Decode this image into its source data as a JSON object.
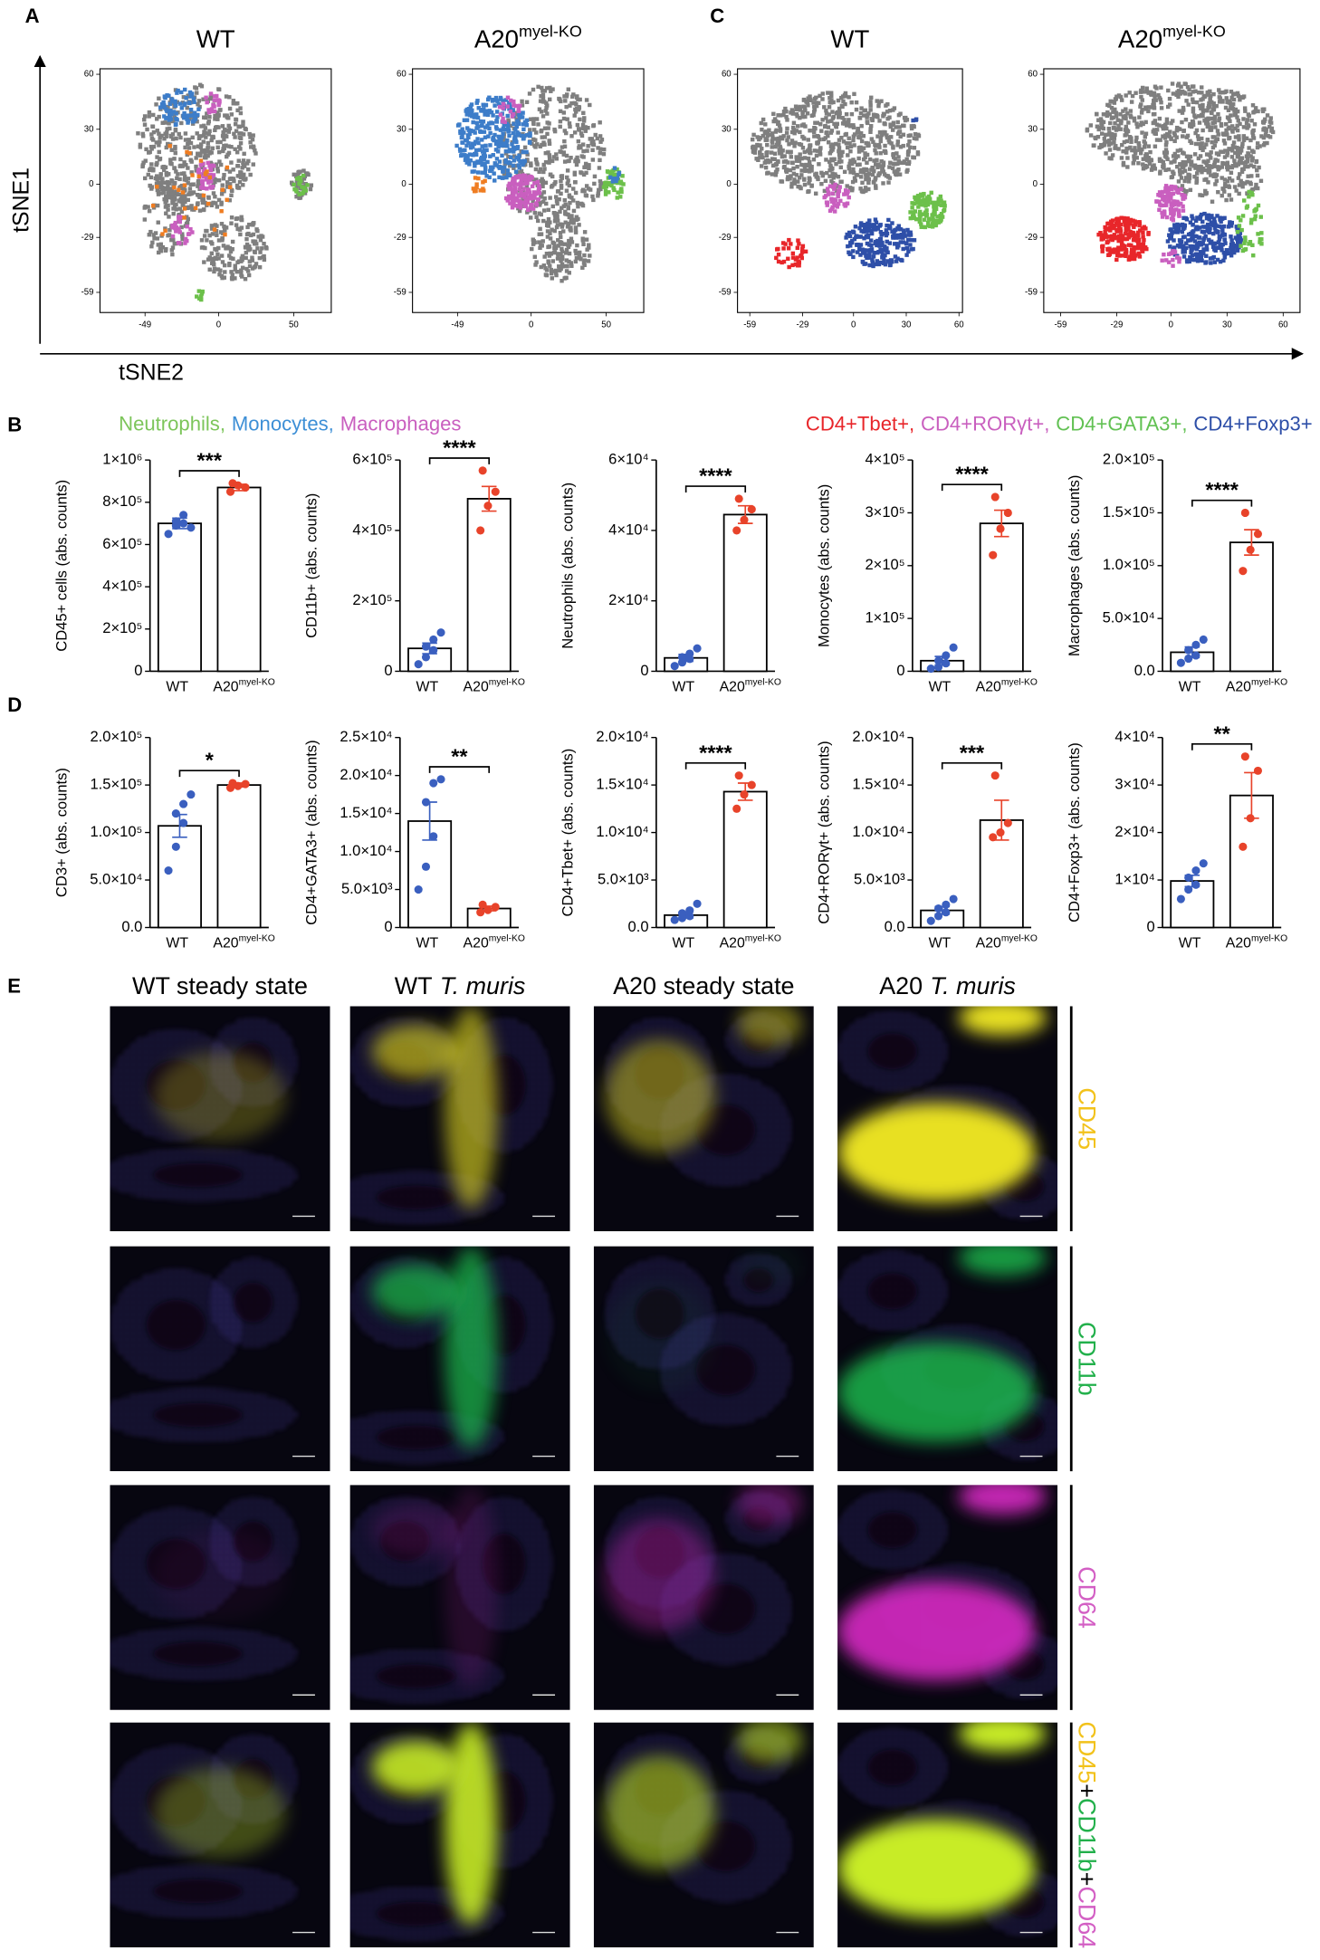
{
  "panel_labels": [
    "A",
    "B",
    "C",
    "D",
    "E"
  ],
  "axis_labels": {
    "y": "tSNE1",
    "x": "tSNE2"
  },
  "tsne": [
    {
      "title": [
        "WT"
      ],
      "xlim": [
        -79,
        75
      ],
      "ylim": [
        -70,
        63
      ],
      "xticks": [
        -49,
        0,
        50
      ],
      "yticks": [
        60,
        30,
        0,
        -29,
        -59
      ]
    },
    {
      "title": [
        "A20",
        "myel-KO"
      ],
      "xlim": [
        -79,
        75
      ],
      "ylim": [
        -70,
        63
      ],
      "xticks": [
        -49,
        0,
        50
      ],
      "yticks": [
        60,
        30,
        0,
        -29,
        -59
      ]
    },
    {
      "title": [
        "WT"
      ],
      "xlim": [
        -66,
        62
      ],
      "ylim": [
        -70,
        63
      ],
      "xticks": [
        -59,
        -29,
        0,
        30,
        60
      ],
      "yticks": [
        60,
        30,
        0,
        -29,
        -59
      ]
    },
    {
      "title": [
        "A20",
        "myel-KO"
      ],
      "xlim": [
        -68,
        69
      ],
      "ylim": [
        -70,
        63
      ],
      "xticks": [
        -59,
        -29,
        0,
        30,
        60
      ],
      "yticks": [
        60,
        30,
        0,
        -29,
        -59
      ]
    }
  ],
  "legends": [
    [
      {
        "text": "Neutrophils,",
        "color": "#7cc55a"
      },
      {
        "text": "Monocytes,",
        "color": "#3d8fd6"
      },
      {
        "text": "Macrophages",
        "color": "#c95fbf"
      }
    ],
    [
      {
        "text": "CD4+Tbet+,",
        "color": "#e8262a"
      },
      {
        "text": "CD4+RORγt+,",
        "color": "#c95fbf"
      },
      {
        "text": "CD4+GATA3+,",
        "color": "#62c153"
      },
      {
        "text": "CD4+Foxp3+",
        "color": "#2e4fa8"
      }
    ]
  ],
  "chart_data": [
    {
      "type": "bar",
      "y_label": "CD45+ cells (abs. counts)",
      "categories": [
        [
          "WT"
        ],
        [
          "A20",
          "myel-KO"
        ]
      ],
      "values": [
        700000,
        870000
      ],
      "errors": [
        25000,
        15000
      ],
      "points": [
        [
          650000,
          690000,
          700000,
          710000,
          740000,
          680000
        ],
        [
          850000,
          880000,
          870000,
          890000
        ]
      ],
      "ylim": [
        0,
        1000000
      ],
      "yticks": [
        0,
        {
          "value": 200000,
          "label": "2×10⁵"
        },
        {
          "value": 400000,
          "label": "4×10⁵"
        },
        {
          "value": 600000,
          "label": "6×10⁵"
        },
        {
          "value": 800000,
          "label": "8×10⁵"
        },
        {
          "value": 1000000,
          "label": "1×10⁶"
        }
      ],
      "significance": "***",
      "point_colors": [
        "#3a5fbf",
        "#e8432a"
      ]
    },
    {
      "type": "bar",
      "y_label": "CD11b+ (abs. counts)",
      "categories": [
        [
          "WT"
        ],
        [
          "A20",
          "myel-KO"
        ]
      ],
      "values": [
        65000,
        490000
      ],
      "errors": [
        15000,
        35000
      ],
      "points": [
        [
          20000,
          40000,
          60000,
          70000,
          90000,
          110000
        ],
        [
          400000,
          470000,
          510000,
          570000
        ]
      ],
      "ylim": [
        0,
        600000
      ],
      "yticks": [
        0,
        {
          "value": 200000,
          "label": "2×10⁵"
        },
        {
          "value": 400000,
          "label": "4×10⁵"
        },
        {
          "value": 600000,
          "label": "6×10⁵"
        }
      ],
      "significance": "****",
      "point_colors": [
        "#3a5fbf",
        "#e8432a"
      ]
    },
    {
      "type": "bar",
      "y_label": "Neutrophils (abs. counts)",
      "categories": [
        [
          "WT"
        ],
        [
          "A20",
          "myel-KO"
        ]
      ],
      "values": [
        3800,
        44500
      ],
      "errors": [
        1000,
        2500
      ],
      "points": [
        [
          1500,
          2500,
          3500,
          4000,
          5000,
          6500
        ],
        [
          40000,
          43000,
          46000,
          49000
        ]
      ],
      "ylim": [
        0,
        60000
      ],
      "yticks": [
        0,
        {
          "value": 20000,
          "label": "2×10⁴"
        },
        {
          "value": 40000,
          "label": "4×10⁴"
        },
        {
          "value": 60000,
          "label": "6×10⁴"
        }
      ],
      "significance": "****",
      "point_colors": [
        "#3a5fbf",
        "#e8432a"
      ]
    },
    {
      "type": "bar",
      "y_label": "Monocytes (abs. counts)",
      "categories": [
        [
          "WT"
        ],
        [
          "A20",
          "myel-KO"
        ]
      ],
      "values": [
        20000,
        280000
      ],
      "errors": [
        8000,
        25000
      ],
      "points": [
        [
          5000,
          8000,
          15000,
          20000,
          30000,
          45000
        ],
        [
          220000,
          270000,
          300000,
          330000
        ]
      ],
      "ylim": [
        0,
        400000
      ],
      "yticks": [
        0,
        {
          "value": 100000,
          "label": "1×10⁵"
        },
        {
          "value": 200000,
          "label": "2×10⁵"
        },
        {
          "value": 300000,
          "label": "3×10⁵"
        },
        {
          "value": 400000,
          "label": "4×10⁵"
        }
      ],
      "significance": "****",
      "point_colors": [
        "#3a5fbf",
        "#e8432a"
      ]
    },
    {
      "type": "bar",
      "y_label": "Macrophages (abs. counts)",
      "categories": [
        [
          "WT"
        ],
        [
          "A20",
          "myel-KO"
        ]
      ],
      "values": [
        18000,
        122000
      ],
      "errors": [
        5000,
        12000
      ],
      "points": [
        [
          8000,
          12000,
          15000,
          20000,
          25000,
          30000
        ],
        [
          95000,
          115000,
          130000,
          150000
        ]
      ],
      "ylim": [
        0,
        200000
      ],
      "yticks": [
        {
          "value": 0,
          "label": "0.0"
        },
        {
          "value": 50000,
          "label": "5.0×10⁴"
        },
        {
          "value": 100000,
          "label": "1.0×10⁵"
        },
        {
          "value": 150000,
          "label": "1.5×10⁵"
        },
        {
          "value": 200000,
          "label": "2.0×10⁵"
        }
      ],
      "significance": "****",
      "point_colors": [
        "#3a5fbf",
        "#e8432a"
      ]
    },
    {
      "type": "bar",
      "y_label": "CD3+ (abs. counts)",
      "categories": [
        [
          "WT"
        ],
        [
          "A20",
          "myel-KO"
        ]
      ],
      "values": [
        107000,
        150000
      ],
      "errors": [
        12000,
        2000
      ],
      "points": [
        [
          60000,
          85000,
          110000,
          120000,
          130000,
          140000
        ],
        [
          147000,
          149000,
          151000,
          152000
        ]
      ],
      "ylim": [
        0,
        200000
      ],
      "yticks": [
        {
          "value": 0,
          "label": "0.0"
        },
        {
          "value": 50000,
          "label": "5.0×10⁴"
        },
        {
          "value": 100000,
          "label": "1.0×10⁵"
        },
        {
          "value": 150000,
          "label": "1.5×10⁵"
        },
        {
          "value": 200000,
          "label": "2.0×10⁵"
        }
      ],
      "significance": "*",
      "point_colors": [
        "#3a5fbf",
        "#e8432a"
      ]
    },
    {
      "type": "bar",
      "y_label": "CD4+GATA3+ (abs. counts)",
      "categories": [
        [
          "WT"
        ],
        [
          "A20",
          "myel-KO"
        ]
      ],
      "values": [
        14000,
        2500
      ],
      "errors": [
        2500,
        300
      ],
      "points": [
        [
          5000,
          8000,
          12000,
          16500,
          19000,
          19500
        ],
        [
          2000,
          2300,
          2700,
          3000
        ]
      ],
      "ylim": [
        0,
        25000
      ],
      "yticks": [
        0,
        {
          "value": 5000,
          "label": "5.0×10³"
        },
        {
          "value": 10000,
          "label": "1.0×10⁴"
        },
        {
          "value": 15000,
          "label": "1.5×10⁴"
        },
        {
          "value": 20000,
          "label": "2.0×10⁴"
        },
        {
          "value": 25000,
          "label": "2.5×10⁴"
        }
      ],
      "significance": "**",
      "point_colors": [
        "#3a5fbf",
        "#e8432a"
      ]
    },
    {
      "type": "bar",
      "y_label": "CD4+Tbet+ (abs. counts)",
      "categories": [
        [
          "WT"
        ],
        [
          "A20",
          "myel-KO"
        ]
      ],
      "values": [
        1300,
        14300
      ],
      "errors": [
        300,
        900
      ],
      "points": [
        [
          800,
          1000,
          1200,
          1500,
          1800,
          2500
        ],
        [
          12500,
          14000,
          15000,
          16000
        ]
      ],
      "ylim": [
        0,
        20000
      ],
      "yticks": [
        {
          "value": 0,
          "label": "0.0"
        },
        {
          "value": 5000,
          "label": "5.0×10³"
        },
        {
          "value": 10000,
          "label": "1.0×10⁴"
        },
        {
          "value": 15000,
          "label": "1.5×10⁴"
        },
        {
          "value": 20000,
          "label": "2.0×10⁴"
        }
      ],
      "significance": "****",
      "point_colors": [
        "#3a5fbf",
        "#e8432a"
      ]
    },
    {
      "type": "bar",
      "y_label": "CD4+RORγt+ (abs. counts)",
      "categories": [
        [
          "WT"
        ],
        [
          "A20",
          "myel-KO"
        ]
      ],
      "values": [
        1800,
        11300
      ],
      "errors": [
        400,
        2100
      ],
      "points": [
        [
          700,
          1200,
          1600,
          2000,
          2400,
          3000
        ],
        [
          9500,
          10000,
          11000,
          16000
        ]
      ],
      "ylim": [
        0,
        20000
      ],
      "yticks": [
        {
          "value": 0,
          "label": "0.0"
        },
        {
          "value": 5000,
          "label": "5.0×10³"
        },
        {
          "value": 10000,
          "label": "1.0×10⁴"
        },
        {
          "value": 15000,
          "label": "1.5×10⁴"
        },
        {
          "value": 20000,
          "label": "2.0×10⁴"
        }
      ],
      "significance": "***",
      "point_colors": [
        "#3a5fbf",
        "#e8432a"
      ]
    },
    {
      "type": "bar",
      "y_label": "CD4+Foxp3+ (abs. counts)",
      "categories": [
        [
          "WT"
        ],
        [
          "A20",
          "myel-KO"
        ]
      ],
      "values": [
        9800,
        27800
      ],
      "errors": [
        1200,
        4800
      ],
      "points": [
        [
          6000,
          8000,
          9000,
          10500,
          12000,
          13500
        ],
        [
          17000,
          23000,
          33000,
          36000
        ]
      ],
      "ylim": [
        0,
        40000
      ],
      "yticks": [
        0,
        {
          "value": 10000,
          "label": "1×10⁴"
        },
        {
          "value": 20000,
          "label": "2×10⁴"
        },
        {
          "value": 30000,
          "label": "3×10⁴"
        },
        {
          "value": 40000,
          "label": "4×10⁴"
        }
      ],
      "significance": "**",
      "point_colors": [
        "#3a5fbf",
        "#e8432a"
      ]
    }
  ],
  "figure_e": {
    "columns": [
      [
        "WT steady state"
      ],
      [
        "WT",
        "T. muris"
      ],
      [
        "A20 steady state"
      ],
      [
        "A20",
        "T. muris"
      ]
    ],
    "rows": [
      [
        {
          "text": "CD45",
          "color": "#f2c21b"
        }
      ],
      [
        {
          "text": "CD11b",
          "color": "#22b04b"
        }
      ],
      [
        {
          "text": "CD64",
          "color": "#d35fc4"
        }
      ],
      [
        {
          "text": "CD45",
          "color": "#f2c21b"
        },
        {
          "text": "+",
          "color": "#000000"
        },
        {
          "text": "CD11b",
          "color": "#22b04b"
        },
        {
          "text": "+",
          "color": "#000000"
        },
        {
          "text": "CD64",
          "color": "#d35fc4"
        }
      ]
    ]
  }
}
